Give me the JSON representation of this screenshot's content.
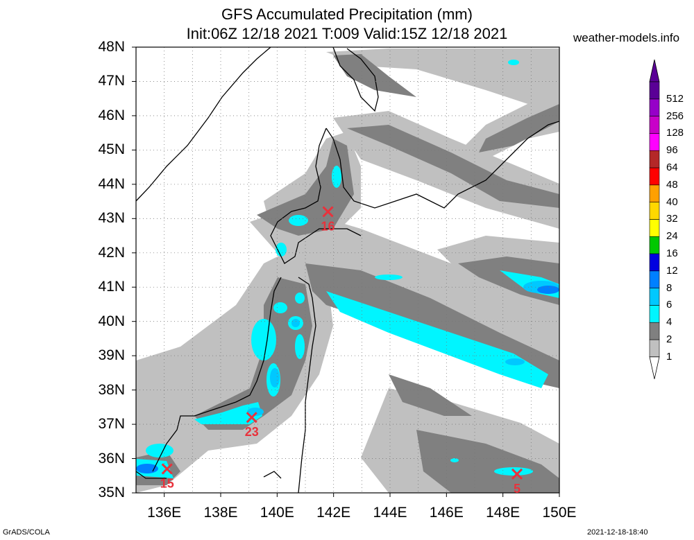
{
  "title": {
    "line1": "GFS Accumulated Precipitation (mm)",
    "line2": "Init:06Z 12/18 2021 T:009 Valid:15Z 12/18 2021"
  },
  "site": "weather-models.info",
  "credit": "GrADS/COLA",
  "timestamp": "2021-12-18-18:40",
  "map": {
    "lon_range": [
      135,
      150
    ],
    "lat_range": [
      35,
      48
    ],
    "lat_labels": [
      "48N",
      "47N",
      "46N",
      "45N",
      "44N",
      "43N",
      "42N",
      "41N",
      "40N",
      "39N",
      "38N",
      "37N",
      "36N",
      "35N"
    ],
    "lon_labels": [
      "136E",
      "138E",
      "140E",
      "142E",
      "144E",
      "146E",
      "148E",
      "150E"
    ],
    "markers": [
      {
        "lon": 141.8,
        "lat": 43.2,
        "label": "16"
      },
      {
        "lon": 139.1,
        "lat": 37.2,
        "label": "23"
      },
      {
        "lon": 136.1,
        "lat": 35.7,
        "label": "15"
      },
      {
        "lon": 148.5,
        "lat": 35.55,
        "label": "5"
      }
    ],
    "marker_color": "#e8323c"
  },
  "colorbar": {
    "levels": [
      "1",
      "2",
      "4",
      "6",
      "8",
      "12",
      "16",
      "24",
      "32",
      "40",
      "48",
      "64",
      "96",
      "128",
      "256",
      "512"
    ],
    "colors": [
      "#c0c0c0",
      "#808080",
      "#00f5ff",
      "#00c8ff",
      "#0080ff",
      "#0000e0",
      "#00c800",
      "#ffff00",
      "#ffd800",
      "#ffa000",
      "#ff0000",
      "#b42828",
      "#ff00ff",
      "#c800c8",
      "#9600c8",
      "#5a0096"
    ]
  }
}
